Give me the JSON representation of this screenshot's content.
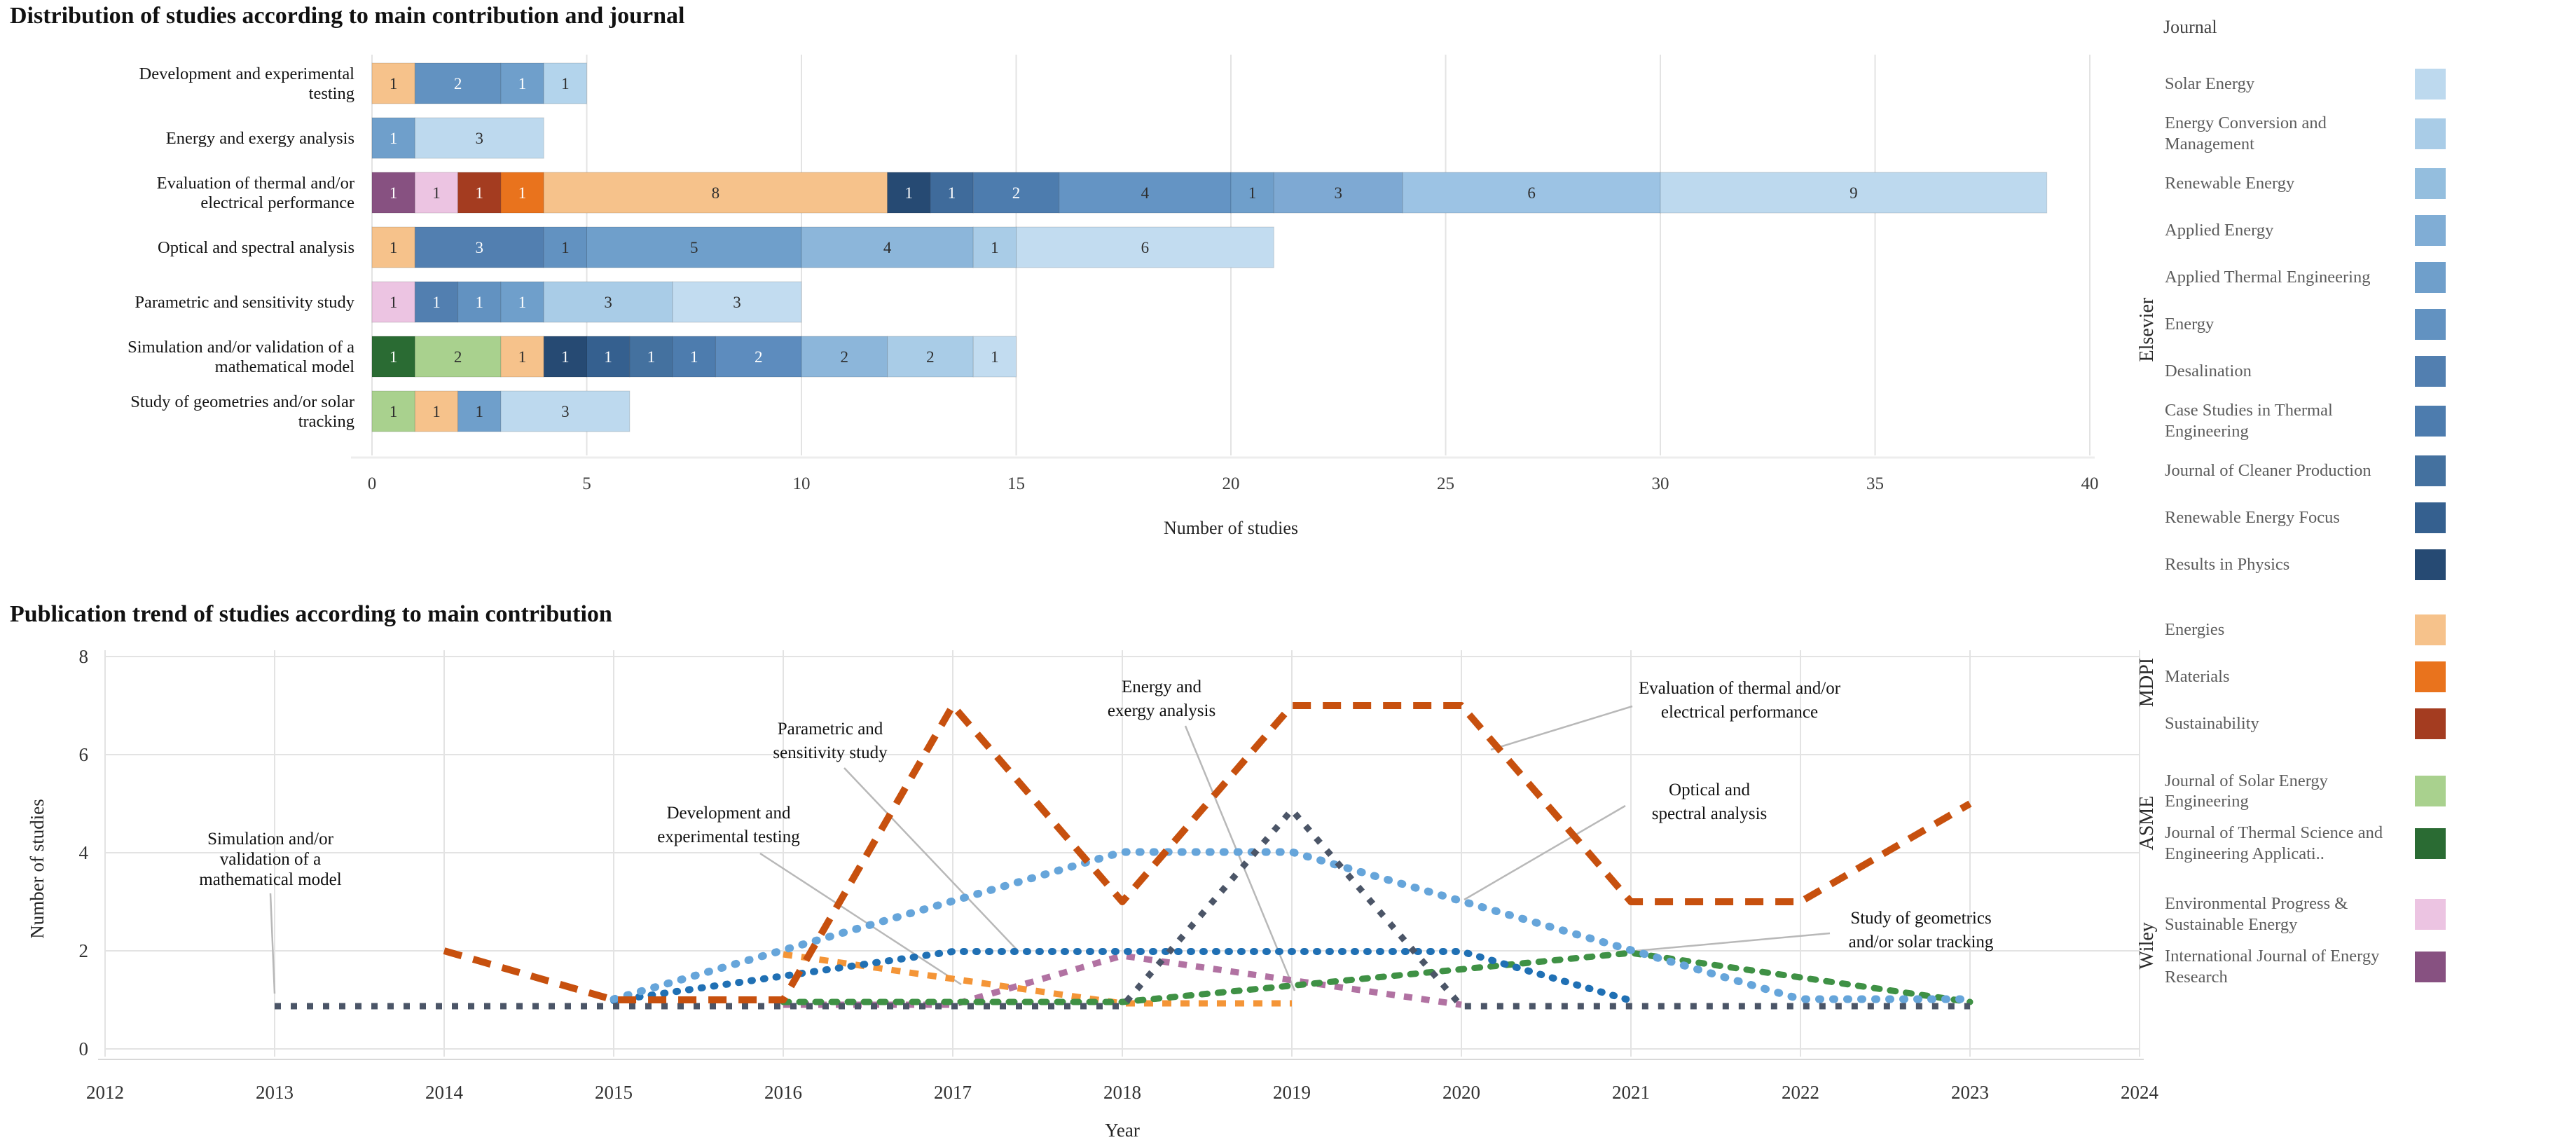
{
  "chart_data": [
    {
      "type": "bar",
      "orientation": "horizontal",
      "stacked": true,
      "title": "Distribution of studies according to main contribution and journal",
      "xlabel": "Number of studies",
      "x_ticks": [
        0,
        5,
        10,
        15,
        20,
        25,
        30,
        35,
        40
      ],
      "xlim": [
        0,
        40
      ],
      "grid": "vertical",
      "rows": [
        {
          "label": "Development and experimental testing",
          "lines": [
            "Development and experimental",
            "testing"
          ],
          "total": 5,
          "segments": [
            {
              "v": 1,
              "c": "#f6c28b",
              "tc": "d"
            },
            {
              "v": 2,
              "c": "#6292c1",
              "tc": "w"
            },
            {
              "v": 1,
              "c": "#6f9fcb",
              "tc": "w"
            },
            {
              "v": 1,
              "c": "#b3d4ec",
              "tc": "d"
            }
          ]
        },
        {
          "label": "Energy and exergy analysis",
          "lines": [
            "Energy and exergy analysis"
          ],
          "total": 4,
          "segments": [
            {
              "v": 1,
              "c": "#6f9fcb",
              "tc": "w"
            },
            {
              "v": 3,
              "c": "#bdd9ee",
              "tc": "d"
            }
          ]
        },
        {
          "label": "Evaluation of thermal and/or electrical performance",
          "lines": [
            "Evaluation of thermal and/or",
            "electrical performance"
          ],
          "total": 39,
          "segments": [
            {
              "v": 1,
              "c": "#875181",
              "tc": "w"
            },
            {
              "v": 1,
              "c": "#ecc4e2",
              "tc": "d"
            },
            {
              "v": 1,
              "c": "#a43c20",
              "tc": "w"
            },
            {
              "v": 1,
              "c": "#e9731d",
              "tc": "w"
            },
            {
              "v": 8,
              "c": "#f6c28b",
              "tc": "d"
            },
            {
              "v": 1,
              "c": "#264a73",
              "tc": "w"
            },
            {
              "v": 1,
              "c": "#3f6b9b",
              "tc": "w"
            },
            {
              "v": 2,
              "c": "#4d7cae",
              "tc": "w"
            },
            {
              "v": 4,
              "c": "#6494c4",
              "tc": "d"
            },
            {
              "v": 1,
              "c": "#6f9fcb",
              "tc": "d"
            },
            {
              "v": 3,
              "c": "#7ea9d3",
              "tc": "d"
            },
            {
              "v": 6,
              "c": "#9cc3e4",
              "tc": "d"
            },
            {
              "v": 9,
              "c": "#bdd9ee",
              "tc": "d"
            }
          ]
        },
        {
          "label": "Optical and spectral analysis",
          "lines": [
            "Optical and spectral analysis"
          ],
          "total": 21,
          "segments": [
            {
              "v": 1,
              "c": "#f6c28b",
              "tc": "d"
            },
            {
              "v": 3,
              "c": "#527fb0",
              "tc": "w"
            },
            {
              "v": 1,
              "c": "#6292c1",
              "tc": "d"
            },
            {
              "v": 5,
              "c": "#6f9fcb",
              "tc": "d"
            },
            {
              "v": 4,
              "c": "#8cb6da",
              "tc": "d"
            },
            {
              "v": 1,
              "c": "#a9cce7",
              "tc": "d"
            },
            {
              "v": 6,
              "c": "#c2dcf0",
              "tc": "d"
            }
          ]
        },
        {
          "label": "Parametric and sensitivity study",
          "lines": [
            "Parametric and sensitivity study"
          ],
          "total": 10,
          "segments": [
            {
              "v": 1,
              "c": "#ecc4e2",
              "tc": "d"
            },
            {
              "v": 1,
              "c": "#527fb0",
              "tc": "w"
            },
            {
              "v": 1,
              "c": "#6292c1",
              "tc": "w"
            },
            {
              "v": 1,
              "c": "#6f9fcb",
              "tc": "w"
            },
            {
              "v": 3,
              "c": "#a9cce7",
              "tc": "d"
            },
            {
              "v": 3,
              "c": "#c2dcf0",
              "tc": "d"
            }
          ]
        },
        {
          "label": "Simulation and/or validation of a mathematical model",
          "lines": [
            "Simulation and/or validation of a",
            "mathematical model"
          ],
          "total": 15,
          "segments": [
            {
              "v": 1,
              "c": "#2a6b33",
              "tc": "w"
            },
            {
              "v": 2,
              "c": "#a9d18e",
              "tc": "d"
            },
            {
              "v": 1,
              "c": "#f6c28b",
              "tc": "d"
            },
            {
              "v": 1,
              "c": "#264a73",
              "tc": "w"
            },
            {
              "v": 1,
              "c": "#35608f",
              "tc": "w"
            },
            {
              "v": 1,
              "c": "#44719f",
              "tc": "w"
            },
            {
              "v": 1,
              "c": "#4d7cae",
              "tc": "w"
            },
            {
              "v": 2,
              "c": "#5d8cbe",
              "tc": "w"
            },
            {
              "v": 2,
              "c": "#8cb6da",
              "tc": "d"
            },
            {
              "v": 2,
              "c": "#a9cce7",
              "tc": "d"
            },
            {
              "v": 1,
              "c": "#c2dcf0",
              "tc": "d"
            }
          ]
        },
        {
          "label": "Study of geometries and/or solar tracking",
          "lines": [
            "Study of geometries and/or solar",
            "tracking"
          ],
          "total": 6,
          "segments": [
            {
              "v": 1,
              "c": "#a9d18e",
              "tc": "d"
            },
            {
              "v": 1,
              "c": "#f6c28b",
              "tc": "d"
            },
            {
              "v": 1,
              "c": "#6f9fcb",
              "tc": "d"
            },
            {
              "v": 3,
              "c": "#bdd9ee",
              "tc": "d"
            }
          ]
        }
      ]
    },
    {
      "type": "line",
      "title": "Publication trend of studies according to main contribution",
      "xlabel": "Year",
      "ylabel": "Number of studies",
      "x_ticks": [
        2012,
        2013,
        2014,
        2015,
        2016,
        2017,
        2018,
        2019,
        2020,
        2021,
        2022,
        2023,
        2024
      ],
      "y_ticks": [
        0,
        2,
        4,
        6,
        8
      ],
      "ylim": [
        0,
        8
      ],
      "grid": "both",
      "line_style": "dashed",
      "series": [
        {
          "name": "Energy and exergy analysis",
          "color": "#f49537",
          "dash": "13 13",
          "cap": "butt",
          "w": 9,
          "dy": 5,
          "points": [
            [
              2016,
              2
            ],
            [
              2018,
              1
            ],
            [
              2019,
              1
            ]
          ]
        },
        {
          "name": "Development and experimental testing",
          "color": "#b172a2",
          "dash": "12 13",
          "cap": "butt",
          "w": 9,
          "dy": 7,
          "points": [
            [
              2016,
              1
            ],
            [
              2017,
              1
            ],
            [
              2018,
              2
            ],
            [
              2020,
              1
            ]
          ]
        },
        {
          "name": "Study of geometrics and/or solar tracking",
          "color": "#3f9145",
          "dash": "8 15",
          "cap": "round",
          "w": 9,
          "dy": 3,
          "points": [
            [
              2016,
              1
            ],
            [
              2017,
              1
            ],
            [
              2018,
              1
            ],
            [
              2021,
              2
            ],
            [
              2023,
              1
            ]
          ]
        },
        {
          "name": "Parametric and sensitivity study",
          "color": "#2070b4",
          "dash": "2 16",
          "cap": "round",
          "w": 10,
          "dy": 1,
          "points": [
            [
              2015,
              1
            ],
            [
              2017,
              2
            ],
            [
              2018,
              2
            ],
            [
              2019,
              2
            ],
            [
              2020,
              2
            ],
            [
              2021,
              1
            ]
          ]
        },
        {
          "name": "Optical and spectral analysis",
          "color": "#66a5da",
          "dash": "2 18",
          "cap": "round",
          "w": 11,
          "dy": -1,
          "points": [
            [
              2015,
              1
            ],
            [
              2016,
              2
            ],
            [
              2017,
              3
            ],
            [
              2018,
              4
            ],
            [
              2019,
              4
            ],
            [
              2020,
              3
            ],
            [
              2021,
              2
            ],
            [
              2022,
              1
            ],
            [
              2023,
              1
            ]
          ]
        },
        {
          "name": "Simulation and/or validation of a mathematical model",
          "color": "#4b5567",
          "dash": "9 14",
          "cap": "butt",
          "w": 9,
          "dy": 9,
          "points": [
            [
              2013,
              1
            ],
            [
              2014,
              1
            ],
            [
              2015,
              1
            ],
            [
              2016,
              1
            ],
            [
              2017,
              1
            ],
            [
              2018,
              1
            ],
            [
              2019,
              5
            ],
            [
              2020,
              1
            ],
            [
              2021,
              1
            ],
            [
              2022,
              1
            ],
            [
              2023,
              1
            ]
          ]
        },
        {
          "name": "Evaluation of thermal and/or electrical performance",
          "color": "#c7500e",
          "dash": "26 17",
          "cap": "butt",
          "w": 10,
          "dy": 0,
          "points": [
            [
              2014,
              2
            ],
            [
              2015,
              1
            ],
            [
              2016,
              1
            ],
            [
              2017,
              7
            ],
            [
              2018,
              3
            ],
            [
              2019,
              7
            ],
            [
              2020,
              7
            ],
            [
              2021,
              3
            ],
            [
              2022,
              3
            ],
            [
              2023,
              5
            ]
          ]
        }
      ],
      "annotations": [
        {
          "lines": [
            "Simulation and/or",
            "validation of a",
            "mathematical model"
          ],
          "x": 386,
          "y": 345,
          "gap": 29,
          "leader": [
            386,
            415,
            392,
            558
          ]
        },
        {
          "lines": [
            "Development and",
            "experimental testing"
          ],
          "x": 1040,
          "y": 308,
          "gap": 34,
          "leader": [
            1085,
            358,
            1372,
            545
          ]
        },
        {
          "lines": [
            "Parametric and",
            "sensitivity study"
          ],
          "x": 1185,
          "y": 188,
          "gap": 34,
          "leader": [
            1205,
            236,
            1452,
            496
          ]
        },
        {
          "lines": [
            "Energy and",
            "exergy analysis"
          ],
          "x": 1658,
          "y": 128,
          "gap": 34,
          "leader": [
            1692,
            176,
            1848,
            554
          ]
        },
        {
          "lines": [
            "Evaluation of thermal and/or",
            "electrical performance"
          ],
          "x": 2483,
          "y": 130,
          "gap": 34,
          "leader": [
            2330,
            148,
            2128,
            210
          ]
        },
        {
          "lines": [
            "Optical and",
            "spectral analysis"
          ],
          "x": 2440,
          "y": 275,
          "gap": 34,
          "leader": [
            2320,
            290,
            2090,
            424
          ]
        },
        {
          "lines": [
            "Study of geometrics",
            "and/or solar tracking"
          ],
          "x": 2742,
          "y": 458,
          "gap": 34,
          "leader": [
            2612,
            472,
            2335,
            497
          ]
        }
      ]
    }
  ],
  "legend": {
    "title": "Journal",
    "groups": [
      {
        "publisher": "Elsevier",
        "items": [
          {
            "name": "Solar Energy",
            "color": "#bdd9ee"
          },
          {
            "name": "Energy Conversion and Management",
            "color": "#a9cce7"
          },
          {
            "name": "Renewable Energy",
            "color": "#94bede"
          },
          {
            "name": "Applied Energy",
            "color": "#80add5"
          },
          {
            "name": "Applied Thermal Engineering",
            "color": "#6f9fcb"
          },
          {
            "name": "Energy",
            "color": "#6292c1"
          },
          {
            "name": "Desalination",
            "color": "#527fb0"
          },
          {
            "name": "Case Studies in Thermal Engineering",
            "color": "#4d7cae"
          },
          {
            "name": "Journal of Cleaner Production",
            "color": "#44719f"
          },
          {
            "name": "Renewable Energy Focus",
            "color": "#35608f"
          },
          {
            "name": "Results in Physics",
            "color": "#264a73"
          }
        ]
      },
      {
        "publisher": "MDPI",
        "items": [
          {
            "name": "Energies",
            "color": "#f6c28b"
          },
          {
            "name": "Materials",
            "color": "#e9731d"
          },
          {
            "name": "Sustainability",
            "color": "#a43c20"
          }
        ]
      },
      {
        "publisher": "ASME",
        "items": [
          {
            "name": "Journal of Solar Energy Engineering",
            "color": "#a9d18e"
          },
          {
            "name": "Journal of Thermal Science and Engineering Applicati..",
            "color": "#2a6b33"
          }
        ]
      },
      {
        "publisher": "Wiley",
        "items": [
          {
            "name": "Environmental Progress & Sustainable Energy",
            "color": "#ecc4e2"
          },
          {
            "name": "International Journal of Energy Research",
            "color": "#875181"
          }
        ]
      }
    ]
  }
}
